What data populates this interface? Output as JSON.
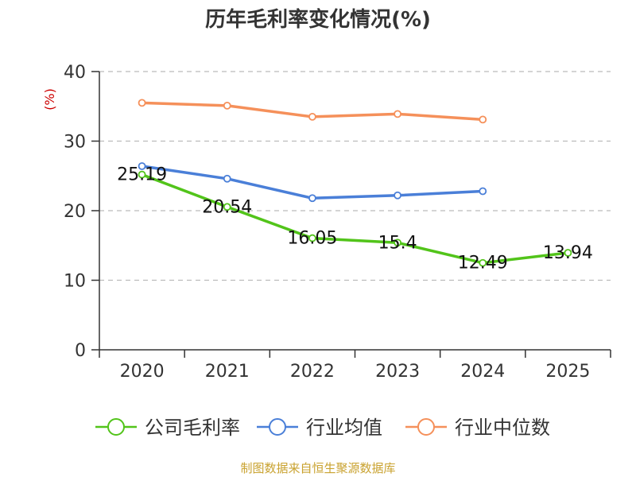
{
  "chart_data": {
    "type": "line",
    "title": "历年毛利率变化情况(%)",
    "ylabel": "(%)",
    "xlabel": "",
    "categories": [
      "2020",
      "2021",
      "2022",
      "2023",
      "2024",
      "2025"
    ],
    "ylim": [
      0,
      40
    ],
    "yticks": [
      0,
      10,
      20,
      30,
      40
    ],
    "grid": true,
    "legend_position": "bottom",
    "series": [
      {
        "name": "公司毛利率",
        "color": "#52c41a",
        "values": [
          25.19,
          20.54,
          16.05,
          15.4,
          12.49,
          13.94
        ],
        "labels": [
          "25.19",
          "20.54",
          "16.05",
          "15.4",
          "12.49",
          "13.94"
        ]
      },
      {
        "name": "行业均值",
        "color": "#4a7fd8",
        "values": [
          26.4,
          24.6,
          21.8,
          22.2,
          22.8,
          null
        ]
      },
      {
        "name": "行业中位数",
        "color": "#f5905a",
        "values": [
          35.5,
          35.1,
          33.5,
          33.9,
          33.1,
          null
        ]
      }
    ]
  },
  "source_text": "制图数据来自恒生聚源数据库"
}
